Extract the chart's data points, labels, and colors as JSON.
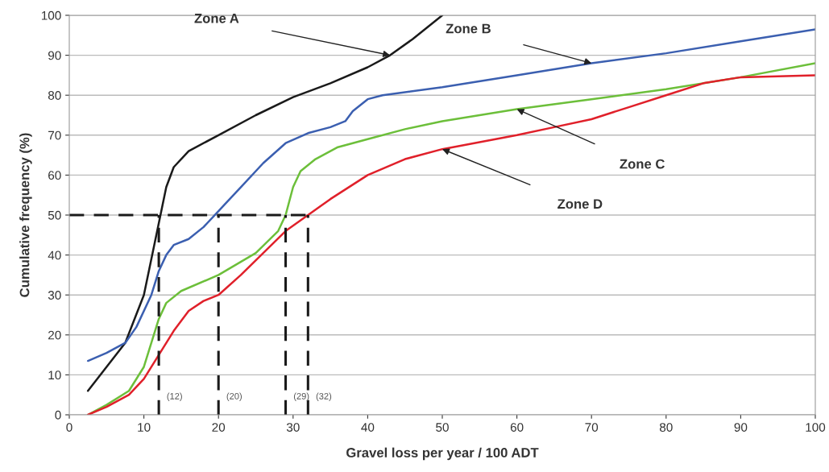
{
  "chart_data": {
    "type": "line",
    "xlabel": "Gravel loss per year / 100 ADT",
    "ylabel": "Cumulative frequency (%)",
    "xlim": [
      0,
      100
    ],
    "ylim": [
      0,
      100
    ],
    "xticks": [
      0,
      10,
      20,
      30,
      40,
      50,
      60,
      70,
      80,
      90,
      100
    ],
    "yticks": [
      0,
      10,
      20,
      30,
      40,
      50,
      60,
      70,
      80,
      90,
      100
    ],
    "grid": "y",
    "marker": "none",
    "line_style": "solid",
    "series": [
      {
        "color": "#1a1a1a",
        "x": [
          2.5,
          5,
          7.5,
          10,
          12,
          13,
          14,
          16,
          20,
          25,
          30,
          35,
          40,
          43,
          46,
          50
        ],
        "values": [
          6,
          12,
          18,
          30,
          48,
          57,
          62,
          66,
          70,
          75,
          79.5,
          83,
          87,
          90,
          94,
          100
        ]
      },
      {
        "color": "#3b5fb0",
        "x": [
          2.5,
          5,
          7.5,
          9,
          11,
          12,
          13,
          14,
          16,
          18,
          20,
          23,
          26,
          29,
          32,
          35,
          37,
          38,
          40,
          42,
          50,
          60,
          70,
          80,
          90,
          100
        ],
        "values": [
          13.5,
          15.5,
          18,
          22,
          30,
          36,
          40,
          42.5,
          44,
          47,
          51,
          57,
          63,
          68,
          70.5,
          72,
          73.5,
          76,
          79,
          80,
          82,
          85,
          88,
          90.5,
          93.5,
          96.5
        ]
      },
      {
        "color": "#6cbf3a",
        "x": [
          2.5,
          5,
          8,
          10,
          11,
          12,
          13,
          15,
          20,
          25,
          28,
          29,
          30,
          31,
          33,
          36,
          40,
          45,
          50,
          60,
          70,
          80,
          90,
          100
        ],
        "values": [
          0,
          2.5,
          6,
          12,
          18,
          24,
          28,
          31,
          35,
          40.5,
          46,
          50,
          57,
          61,
          64,
          67,
          69,
          71.5,
          73.5,
          76.5,
          79,
          81.5,
          84.5,
          88
        ]
      },
      {
        "color": "#e0202a",
        "x": [
          2.5,
          5,
          8,
          10,
          12,
          14,
          16,
          18,
          20,
          23,
          26,
          29,
          32,
          35,
          40,
          45,
          50,
          60,
          65,
          70,
          75,
          80,
          85,
          90,
          100
        ],
        "values": [
          0,
          2,
          5,
          9,
          15,
          21,
          26,
          28.5,
          30,
          35,
          40.5,
          46,
          50,
          54,
          60,
          64,
          66.5,
          70,
          72,
          74,
          77,
          80,
          83,
          84.5,
          85
        ]
      },
      {
        "color": "#1a1a1a",
        "line_style": "dashed",
        "x": [
          0,
          32
        ],
        "values": [
          50,
          50
        ]
      },
      {
        "color": "#1a1a1a",
        "line_style": "dashed",
        "x": [
          12,
          12
        ],
        "values": [
          0,
          50
        ]
      },
      {
        "color": "#1a1a1a",
        "line_style": "dashed",
        "x": [
          20,
          20
        ],
        "values": [
          0,
          50
        ]
      },
      {
        "color": "#1a1a1a",
        "line_style": "dashed",
        "x": [
          29,
          29
        ],
        "values": [
          0,
          50
        ]
      },
      {
        "color": "#1a1a1a",
        "line_style": "dashed",
        "x": [
          32,
          32
        ],
        "values": [
          0,
          50
        ]
      }
    ],
    "annotations": [
      "Zone A",
      "Zone B",
      "Zone C",
      "Zone D",
      {
        "text": "(12)",
        "x": 12,
        "y": 0
      },
      {
        "text": "(20)",
        "x": 20,
        "y": 0
      },
      {
        "text": "(29)",
        "x": 29,
        "y": 0
      },
      {
        "text": "(32)",
        "x": 32,
        "y": 0
      }
    ]
  }
}
